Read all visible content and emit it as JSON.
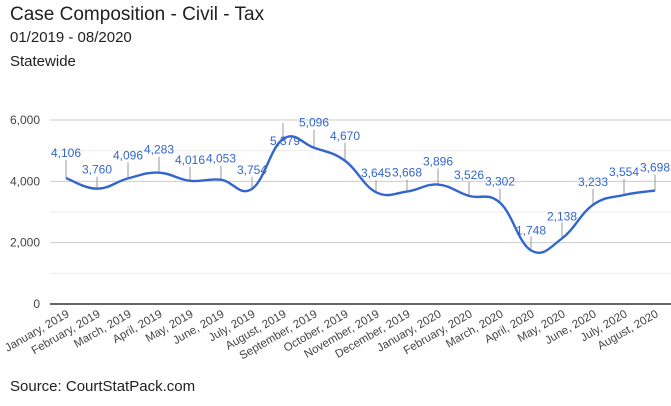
{
  "header": {
    "title": "Case Composition - Civil - Tax",
    "subtitle": "01/2019 - 08/2020",
    "region": "Statewide"
  },
  "footer": {
    "source": "Source: CourtStatPack.com"
  },
  "chart_data": {
    "type": "line",
    "title": "Case Composition - Civil - Tax",
    "subtitle": "01/2019 - 08/2020",
    "xlabel": "",
    "ylabel": "",
    "ylim": [
      0,
      6000
    ],
    "yticks": [
      0,
      2000,
      4000,
      6000
    ],
    "ytick_labels": [
      "0",
      "2,000",
      "4,000",
      "6,000"
    ],
    "minor_gridlines": [
      1000,
      3000,
      5000
    ],
    "grid": true,
    "legend": "none",
    "line_color": "#3366cc",
    "smooth": true,
    "categories": [
      "January, 2019",
      "February, 2019",
      "March, 2019",
      "April, 2019",
      "May, 2019",
      "June, 2019",
      "July, 2019",
      "August, 2019",
      "September, 2019",
      "October, 2019",
      "November, 2019",
      "December, 2019",
      "January, 2020",
      "February, 2020",
      "March, 2020",
      "April, 2020",
      "May, 2020",
      "June, 2020",
      "July, 2020",
      "August, 2020"
    ],
    "series": [
      {
        "name": "Tax",
        "values": [
          4106,
          3760,
          4096,
          4283,
          4016,
          4053,
          3754,
          5379,
          5096,
          4670,
          3645,
          3668,
          3896,
          3526,
          3302,
          1748,
          2138,
          3233,
          3554,
          3698
        ],
        "labels": [
          "4,106",
          "3,760",
          "4,096",
          "4,283",
          "4,016",
          "4,053",
          "3,754",
          "5,379",
          "5,096",
          "4,670",
          "3,645",
          "3,668",
          "3,896",
          "3,526",
          "3,302",
          "1,748",
          "2,138",
          "3,233",
          "3,554",
          "3,698"
        ]
      }
    ]
  }
}
